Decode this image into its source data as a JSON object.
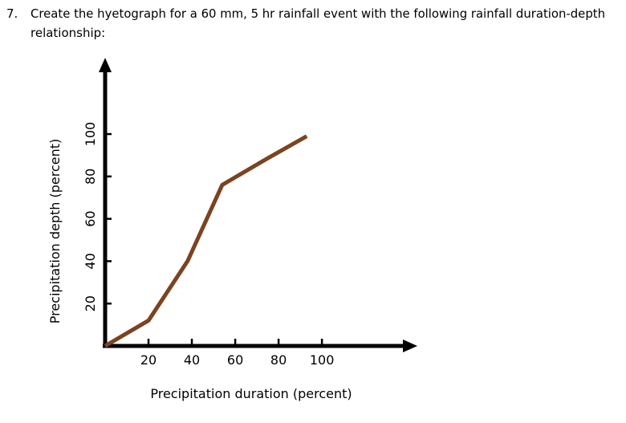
{
  "question": {
    "number": "7.",
    "lines": [
      "Create the hyetograph for a 60 mm, 5 hr rainfall event with the following rainfall duration-depth",
      "relationship:"
    ]
  },
  "chart_data": {
    "type": "line",
    "x_label": "Precipitation duration (percent)",
    "y_label": "Precipitation depth (percent)",
    "x": [
      0,
      20,
      38,
      54,
      74,
      93
    ],
    "series": [
      {
        "color": "#7b4321",
        "values": [
          0,
          12,
          40,
          76,
          88,
          99
        ]
      }
    ],
    "xlim": [
      0,
      144
    ],
    "ylim": [
      0,
      136
    ],
    "xticks": [
      20,
      40,
      60,
      80,
      100
    ],
    "yticks": [
      20,
      40,
      60,
      80,
      100
    ]
  }
}
